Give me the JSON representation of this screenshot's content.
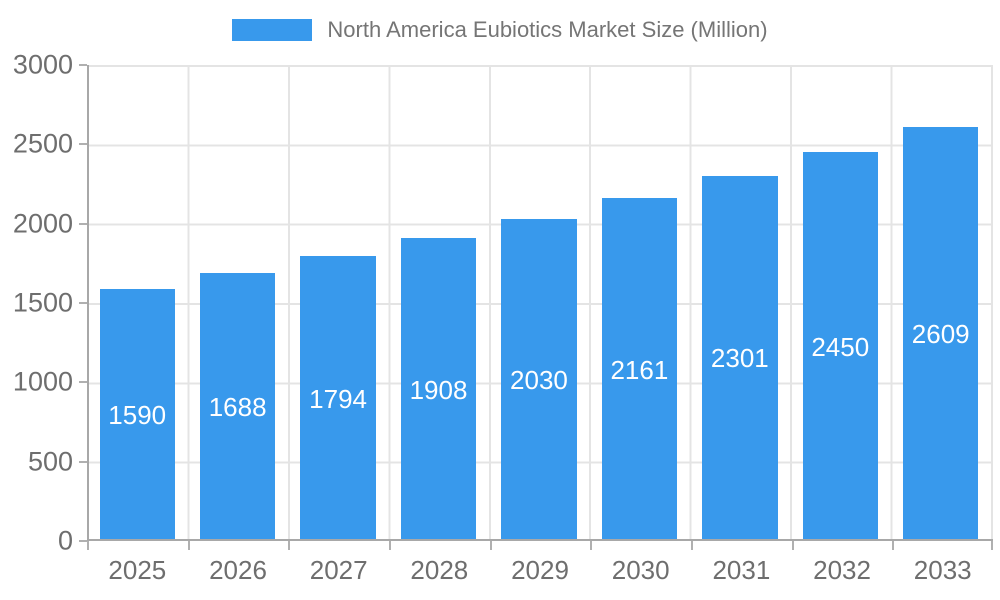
{
  "chart_data": {
    "type": "bar",
    "title": "North America Eubiotics Market Size (Million)",
    "categories": [
      "2025",
      "2026",
      "2027",
      "2028",
      "2029",
      "2030",
      "2031",
      "2032",
      "2033"
    ],
    "values": [
      1590,
      1688,
      1794,
      1908,
      2030,
      2161,
      2301,
      2450,
      2609
    ],
    "series": [
      {
        "name": "North America Eubiotics Market Size (Million)",
        "values": [
          1590,
          1688,
          1794,
          1908,
          2030,
          2161,
          2301,
          2450,
          2609
        ]
      }
    ],
    "xlabel": "",
    "ylabel": "",
    "ylim": [
      0,
      3000
    ],
    "yticks": [
      "3000",
      "2500",
      "2000",
      "1500",
      "1000",
      "500",
      "0"
    ],
    "grid": true,
    "legend_position": "top",
    "colors": {
      "bar": "#3899EC",
      "bar_value_label": "#FFFFFF",
      "axis_line": "#A8A8A8",
      "gridline": "#E4E4E4",
      "tick_label": "#6E6E6E",
      "legend_text": "#757575",
      "background": "#FFFFFF"
    }
  }
}
